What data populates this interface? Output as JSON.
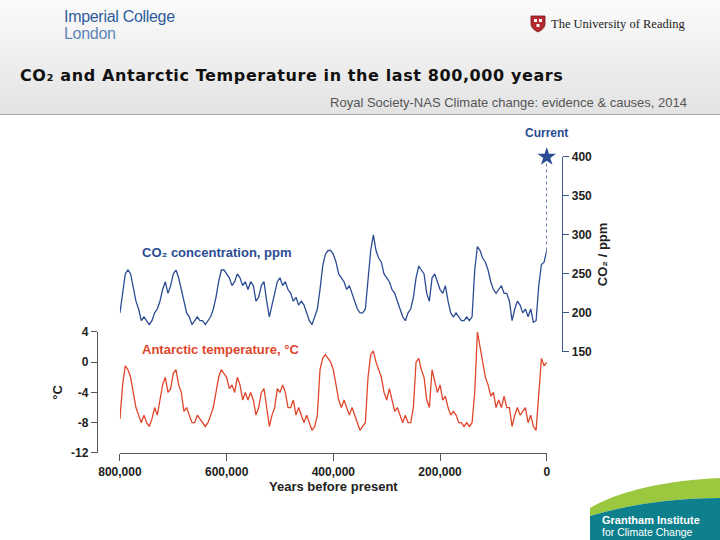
{
  "chart_data": {
    "type": "line",
    "title": "CO₂ and Antarctic Temperature in the last 800,000 years",
    "subtitle": "Royal Society-NAS Climate change: evidence & causes, 2014",
    "x_label": "Years before present",
    "y_label": "°C",
    "y2_label": "CO₂ / ppm",
    "grid": false,
    "xlim": [
      800000,
      0
    ],
    "xticks": [
      {
        "value": 800000,
        "label": "800,000"
      },
      {
        "value": 600000,
        "label": "600,000"
      },
      {
        "value": 400000,
        "label": "400,000"
      },
      {
        "value": 200000,
        "label": "200,000"
      },
      0
    ],
    "ylim": [
      -12,
      4
    ],
    "yticks": [
      -12,
      -8,
      -4,
      0,
      4
    ],
    "y2lim": [
      150,
      400
    ],
    "y2ticks": [
      150,
      200,
      250,
      300,
      350,
      400
    ],
    "x": [
      0,
      5000,
      10000,
      15000,
      20000,
      25000,
      30000,
      35000,
      40000,
      45000,
      50000,
      55000,
      60000,
      65000,
      70000,
      75000,
      80000,
      85000,
      90000,
      95000,
      100000,
      105000,
      110000,
      115000,
      120000,
      125000,
      130000,
      135000,
      140000,
      145000,
      150000,
      155000,
      160000,
      165000,
      170000,
      175000,
      180000,
      185000,
      190000,
      195000,
      200000,
      205000,
      210000,
      215000,
      220000,
      225000,
      230000,
      235000,
      240000,
      245000,
      250000,
      255000,
      260000,
      265000,
      270000,
      275000,
      280000,
      285000,
      290000,
      295000,
      300000,
      305000,
      310000,
      315000,
      320000,
      325000,
      330000,
      335000,
      340000,
      345000,
      350000,
      355000,
      360000,
      365000,
      370000,
      375000,
      380000,
      385000,
      390000,
      395000,
      400000,
      405000,
      410000,
      415000,
      420000,
      425000,
      430000,
      435000,
      440000,
      445000,
      450000,
      455000,
      460000,
      465000,
      470000,
      475000,
      480000,
      485000,
      490000,
      495000,
      500000,
      505000,
      510000,
      515000,
      520000,
      525000,
      530000,
      535000,
      540000,
      545000,
      550000,
      555000,
      560000,
      565000,
      570000,
      575000,
      580000,
      585000,
      590000,
      595000,
      600000,
      605000,
      610000,
      615000,
      620000,
      625000,
      630000,
      635000,
      640000,
      645000,
      650000,
      655000,
      660000,
      665000,
      670000,
      675000,
      680000,
      685000,
      690000,
      695000,
      700000,
      705000,
      710000,
      715000,
      720000,
      725000,
      730000,
      735000,
      740000,
      745000,
      750000,
      755000,
      760000,
      765000,
      770000,
      775000,
      780000,
      785000,
      790000,
      795000,
      800000
    ],
    "series": [
      {
        "name": "CO₂ concentration, ppm",
        "color": "#2b4c93",
        "axis": "y2",
        "values": [
          280,
          265,
          262,
          235,
          190,
          188,
          205,
          195,
          205,
          200,
          210,
          215,
          205,
          190,
          215,
          225,
          225,
          235,
          230,
          225,
          230,
          240,
          255,
          265,
          270,
          280,
          285,
          255,
          195,
          190,
          195,
          190,
          190,
          195,
          200,
          195,
          200,
          215,
          235,
          225,
          230,
          240,
          250,
          245,
          215,
          225,
          250,
          255,
          260,
          245,
          220,
          205,
          200,
          190,
          195,
          205,
          215,
          225,
          230,
          240,
          245,
          250,
          265,
          270,
          280,
          300,
          280,
          240,
          205,
          200,
          200,
          205,
          215,
          225,
          235,
          230,
          240,
          245,
          250,
          265,
          275,
          280,
          280,
          275,
          260,
          230,
          205,
          195,
          185,
          190,
          200,
          210,
          215,
          210,
          220,
          215,
          225,
          230,
          240,
          235,
          245,
          240,
          225,
          210,
          195,
          215,
          240,
          235,
          220,
          215,
          235,
          240,
          230,
          240,
          235,
          245,
          250,
          240,
          235,
          245,
          250,
          255,
          255,
          240,
          220,
          205,
          195,
          190,
          185,
          190,
          190,
          195,
          190,
          185,
          195,
          200,
          215,
          230,
          245,
          255,
          250,
          235,
          225,
          240,
          230,
          215,
          205,
          200,
          190,
          185,
          190,
          195,
          190,
          205,
          215,
          235,
          250,
          255,
          250,
          225,
          200
        ]
      },
      {
        "name": "Antarctic temperature, °C",
        "color": "#e0462b",
        "values": [
          0,
          -0.5,
          0.5,
          -5,
          -9,
          -8.5,
          -7,
          -8,
          -6,
          -6.5,
          -7,
          -6,
          -7,
          -8.5,
          -6,
          -6,
          -4.5,
          -6,
          -5,
          -6,
          -4,
          -4.5,
          -3,
          -2,
          0,
          2,
          4,
          -4,
          -8,
          -8.5,
          -8,
          -8.5,
          -8,
          -8,
          -7,
          -6.5,
          -7,
          -6,
          -4.5,
          -5,
          -3,
          -4,
          -2.5,
          -1,
          -6,
          -5,
          -2,
          -1,
          0.5,
          0,
          -6,
          -8,
          -8,
          -7,
          -8,
          -7,
          -6,
          -6.5,
          -5,
          -3.5,
          -5,
          -4,
          -2,
          -1,
          0,
          1.5,
          1,
          -2,
          -8,
          -8.5,
          -9,
          -8,
          -7,
          -6,
          -7,
          -6,
          -5,
          -6,
          -5,
          -3,
          -1,
          0,
          0.5,
          1,
          0.5,
          -1,
          -7,
          -8.5,
          -9,
          -8,
          -7,
          -8,
          -7,
          -6,
          -7,
          -5,
          -6,
          -6,
          -4,
          -3,
          -4,
          -3.5,
          -6,
          -7,
          -8.5,
          -6,
          -3.5,
          -4,
          -6,
          -7,
          -5,
          -4,
          -5,
          -4,
          -5,
          -3,
          -2,
          -4,
          -3,
          -3.5,
          -2,
          -1.5,
          -1,
          -2,
          -4,
          -6,
          -7,
          -8,
          -8.5,
          -8,
          -7.5,
          -7,
          -8,
          -8,
          -7,
          -6,
          -6.5,
          -4,
          -3,
          -1,
          -1.5,
          -3.5,
          -4,
          -2,
          -3,
          -5,
          -7,
          -6,
          -7.5,
          -8.5,
          -8,
          -7,
          -8,
          -7,
          -6,
          -4,
          -2,
          -1,
          -0.5,
          -3,
          -7.5
        ]
      }
    ],
    "annotations": [
      {
        "text": "Current",
        "x": 0,
        "y": 400,
        "axis": "y2",
        "marker": "star",
        "line_style": "dotted"
      }
    ]
  },
  "slide": {
    "logo_left": [
      "Imperial College",
      "London"
    ],
    "logo_right": "The University of Reading",
    "footer": [
      "Grantham Institute",
      "for Climate Change"
    ]
  }
}
